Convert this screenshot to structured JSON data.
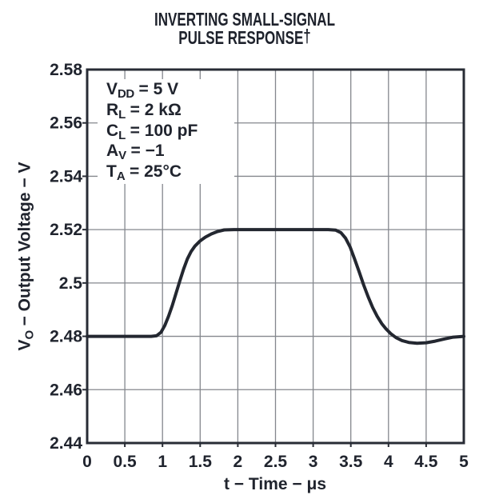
{
  "title": {
    "line1": "INVERTING SMALL-SIGNAL",
    "line2": "PULSE RESPONSE",
    "dagger": "†"
  },
  "conditions": [
    {
      "sym": "V",
      "sub": "DD",
      "rest": " = 5 V"
    },
    {
      "sym": "R",
      "sub": "L",
      "rest": " = 2 kΩ"
    },
    {
      "sym": "C",
      "sub": "L",
      "rest": " = 100 pF"
    },
    {
      "sym": "A",
      "sub": "V",
      "rest": " = −1"
    },
    {
      "sym": "T",
      "sub": "A",
      "rest": " = 25°C"
    }
  ],
  "y_axis": {
    "sym": "V",
    "sub": "O",
    "rest": " − Output Voltage − V"
  },
  "x_axis": {
    "label": "t − Time − μs"
  },
  "chart_data": {
    "type": "line",
    "title": "INVERTING SMALL-SIGNAL PULSE RESPONSE†",
    "xlabel": "t − Time − μs",
    "ylabel": "VO − Output Voltage − V",
    "xlim": [
      0,
      5
    ],
    "ylim": [
      2.44,
      2.58
    ],
    "grid": true,
    "legend_position": "none",
    "x_tick_values": [
      0,
      0.5,
      1,
      1.5,
      2,
      2.5,
      3,
      3.5,
      4,
      4.5,
      5
    ],
    "x_tick_labels": [
      "0",
      "0.5",
      "1",
      "1.5",
      "2",
      "2.5",
      "3",
      "3.5",
      "4",
      "4.5",
      "5"
    ],
    "y_tick_values": [
      2.58,
      2.56,
      2.54,
      2.52,
      2.5,
      2.48,
      2.46,
      2.44
    ],
    "y_tick_labels": [
      "2.58",
      "2.56",
      "2.54",
      "2.52",
      "2.5",
      "2.48",
      "2.46",
      "2.44"
    ],
    "annotations": [
      "VDD = 5 V",
      "RL = 2 kΩ",
      "CL = 100 pF",
      "AV = −1",
      "TA = 25°C"
    ],
    "series": [
      {
        "name": "output-voltage",
        "points": [
          [
            0,
            2.48
          ],
          [
            0.4,
            2.48
          ],
          [
            0.7,
            2.48
          ],
          [
            0.85,
            2.48
          ],
          [
            0.92,
            2.4802
          ],
          [
            0.98,
            2.4815
          ],
          [
            1.03,
            2.484
          ],
          [
            1.08,
            2.4875
          ],
          [
            1.13,
            2.4915
          ],
          [
            1.18,
            2.4962
          ],
          [
            1.23,
            2.5008
          ],
          [
            1.28,
            2.5052
          ],
          [
            1.33,
            2.509
          ],
          [
            1.38,
            2.5118
          ],
          [
            1.43,
            2.5138
          ],
          [
            1.5,
            2.5158
          ],
          [
            1.57,
            2.5172
          ],
          [
            1.65,
            2.5184
          ],
          [
            1.73,
            2.5193
          ],
          [
            1.82,
            2.5199
          ],
          [
            1.95,
            2.52
          ],
          [
            2.2,
            2.52
          ],
          [
            2.6,
            2.52
          ],
          [
            3.0,
            2.52
          ],
          [
            3.2,
            2.52
          ],
          [
            3.3,
            2.5198
          ],
          [
            3.37,
            2.5188
          ],
          [
            3.43,
            2.5168
          ],
          [
            3.49,
            2.5135
          ],
          [
            3.55,
            2.509
          ],
          [
            3.61,
            2.5042
          ],
          [
            3.67,
            2.4993
          ],
          [
            3.73,
            2.4948
          ],
          [
            3.79,
            2.4908
          ],
          [
            3.85,
            2.4875
          ],
          [
            3.91,
            2.4848
          ],
          [
            3.97,
            2.4827
          ],
          [
            4.03,
            2.481
          ],
          [
            4.1,
            2.4795
          ],
          [
            4.18,
            2.4784
          ],
          [
            4.27,
            2.4777
          ],
          [
            4.38,
            2.4774
          ],
          [
            4.5,
            2.4776
          ],
          [
            4.62,
            2.4782
          ],
          [
            4.74,
            2.479
          ],
          [
            4.86,
            2.4797
          ],
          [
            5,
            2.48
          ]
        ]
      }
    ],
    "colors": {
      "ink": "#20242e",
      "grid": "#84878d",
      "border": "#282c35",
      "curve": "#232730",
      "background": "#ffffff"
    }
  }
}
